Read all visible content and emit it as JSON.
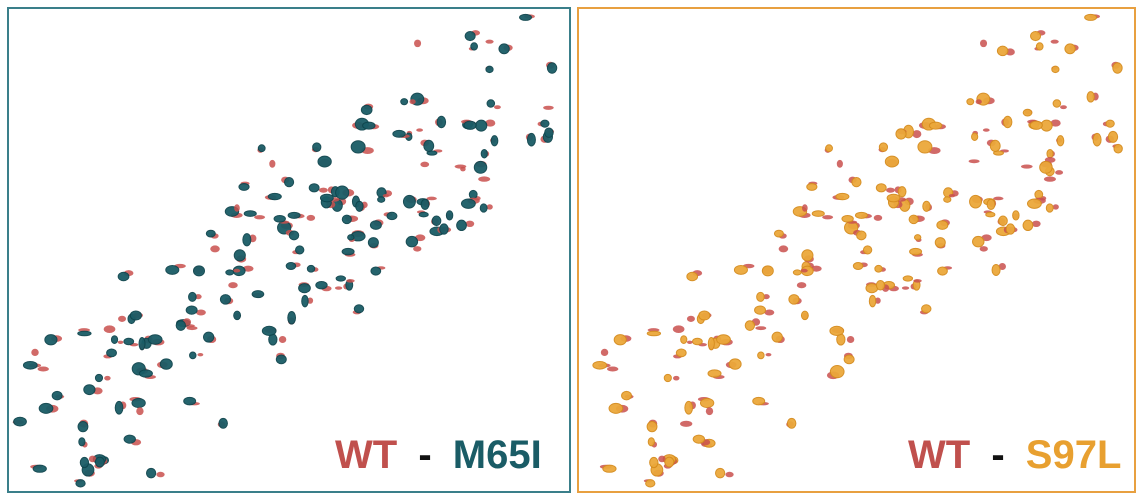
{
  "panels": [
    {
      "label": {
        "reference": "WT",
        "separator": "-",
        "variant": "M65I"
      }
    },
    {
      "label": {
        "reference": "WT",
        "separator": "-",
        "variant": "S97L"
      }
    }
  ]
}
